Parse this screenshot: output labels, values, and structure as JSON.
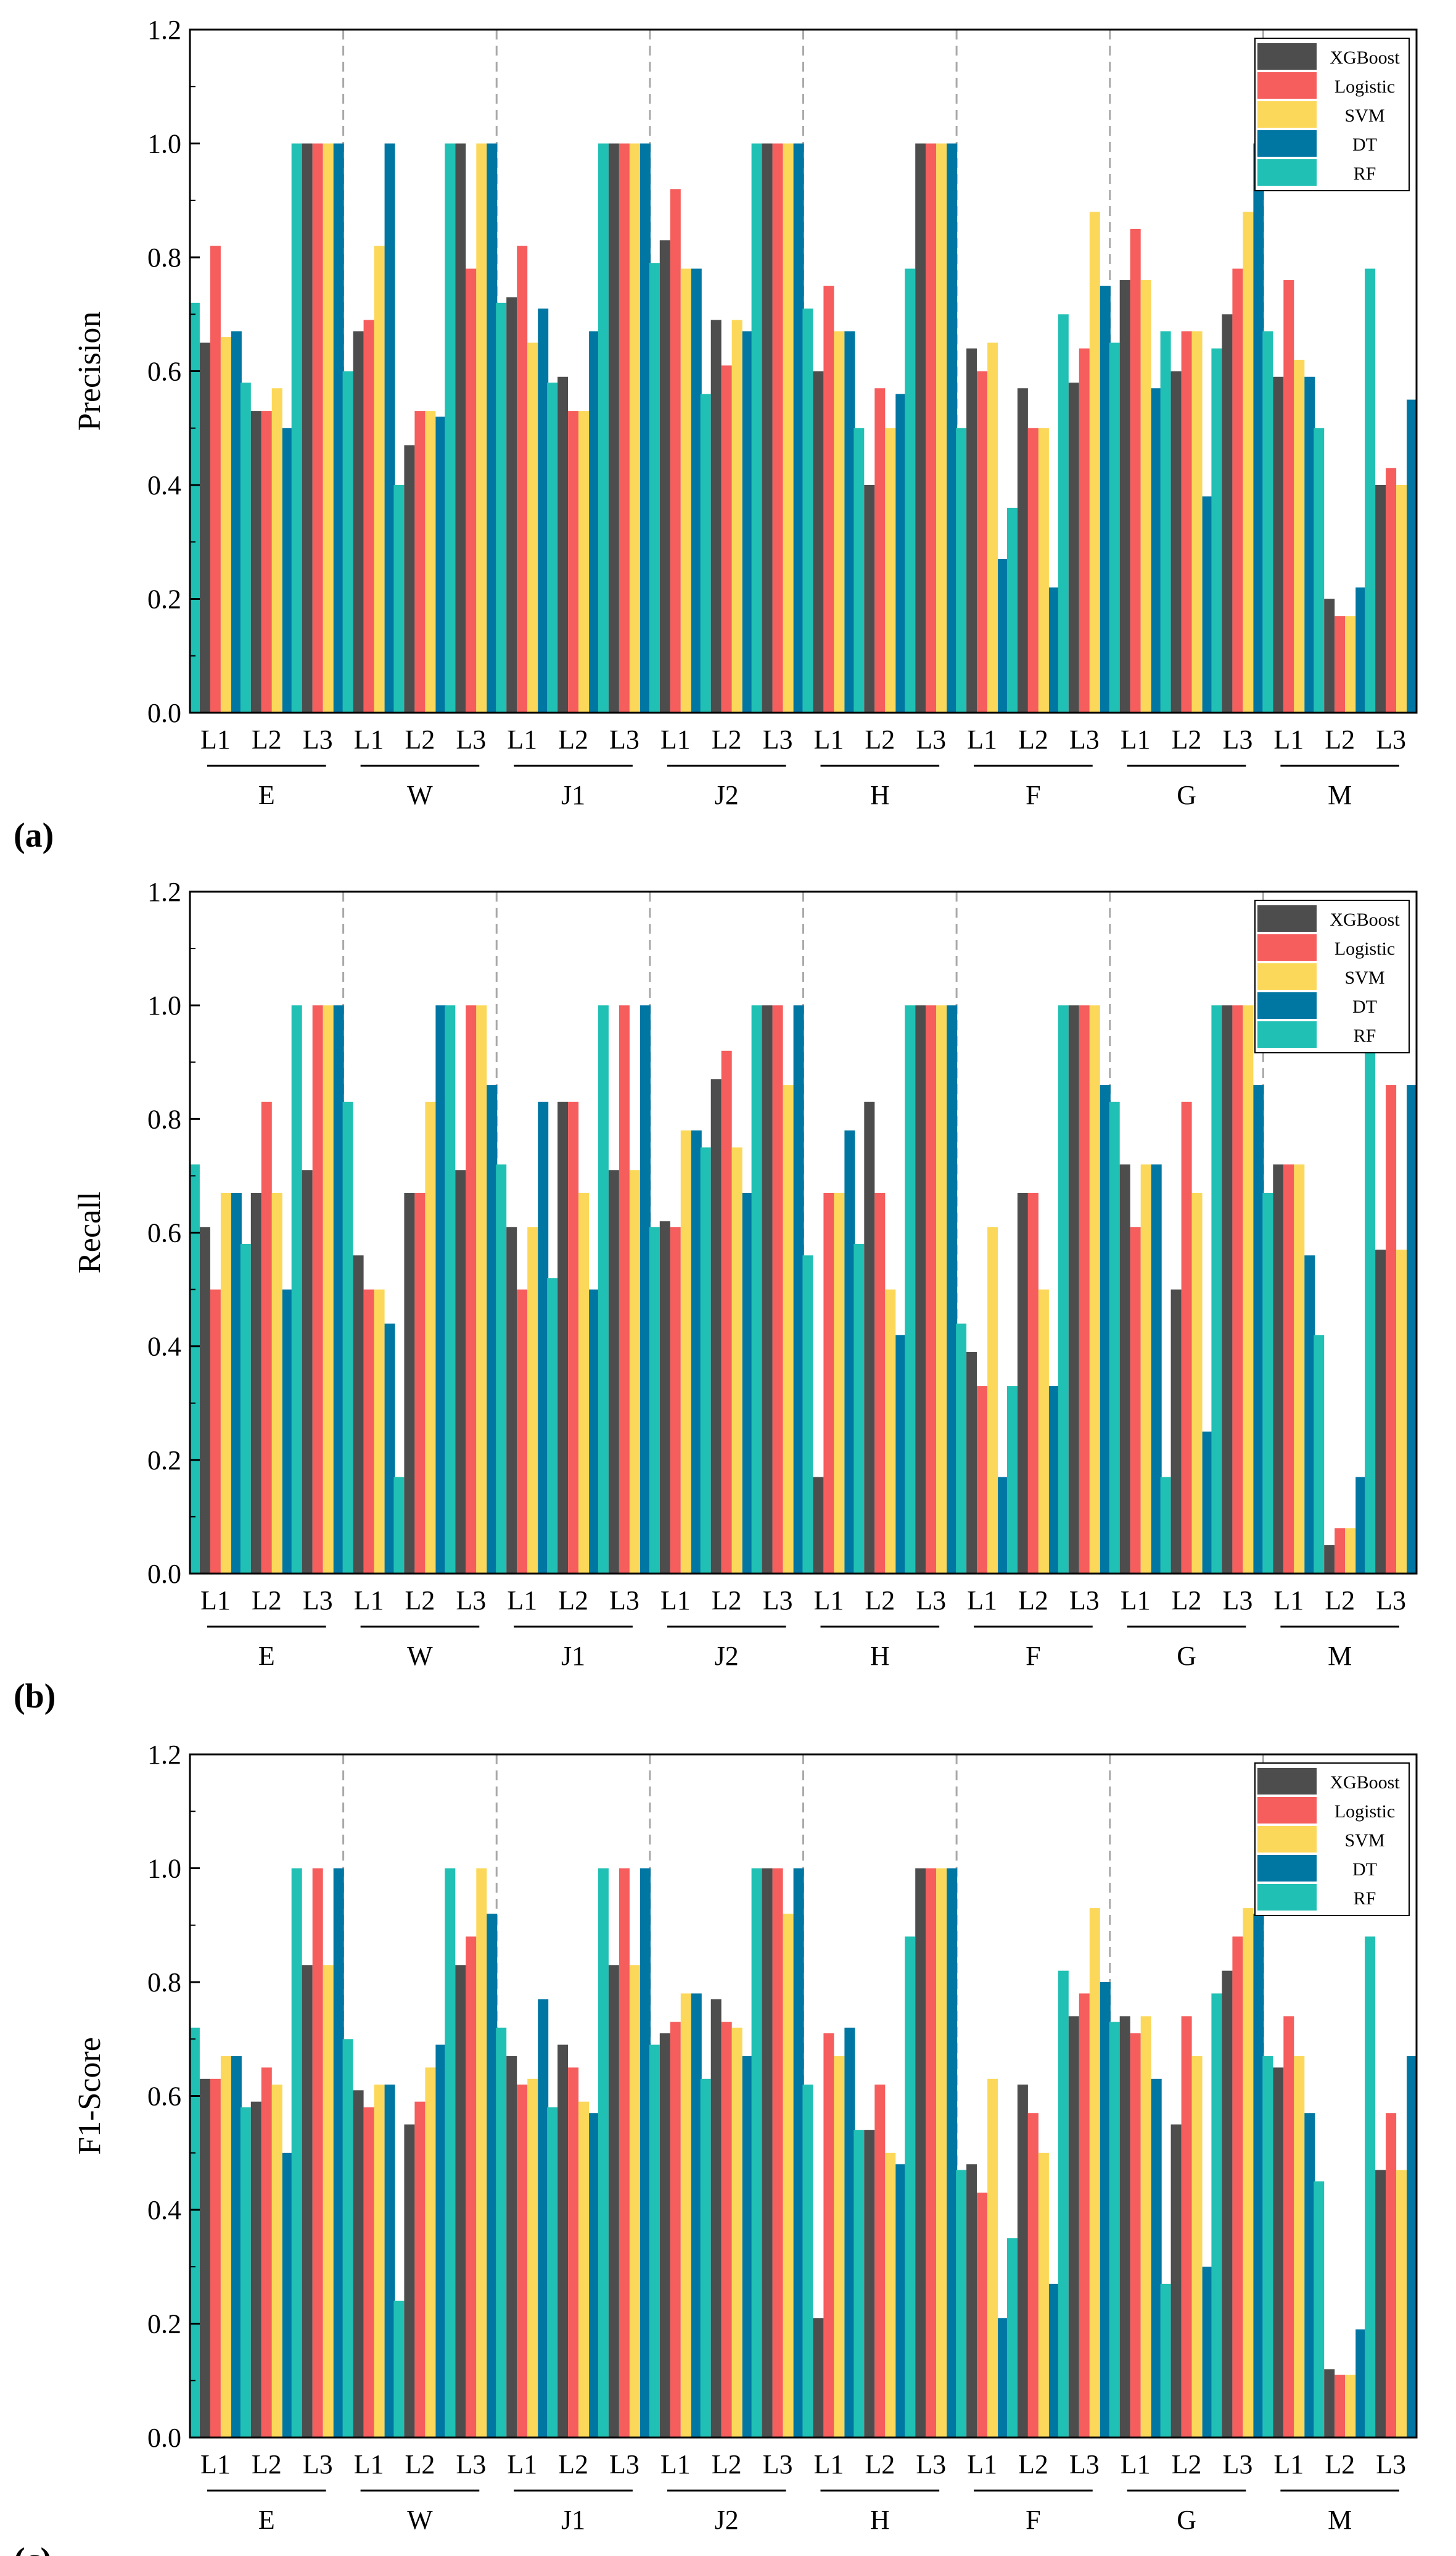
{
  "figure": {
    "panel_labels": [
      "(a)",
      "(b)",
      "(c)"
    ]
  },
  "colors": {
    "XGBoost": "#4d4d4d",
    "Logistic": "#f65d5d",
    "SVM": "#fcd85a",
    "DT": "#0076a3",
    "RF": "#21c0b4"
  },
  "chart_data": [
    {
      "type": "bar",
      "ylabel": "Precision",
      "ylim": [
        0,
        1.2
      ],
      "yticks": [
        "0.0",
        "0.2",
        "0.4",
        "0.6",
        "0.8",
        "1.0",
        "1.2"
      ],
      "groups": [
        "E",
        "W",
        "J1",
        "J2",
        "H",
        "F",
        "G",
        "M"
      ],
      "levels": [
        "L1",
        "L2",
        "L3"
      ],
      "legend": [
        "XGBoost",
        "Logistic",
        "SVM",
        "DT",
        "RF"
      ],
      "legend_position": "top-right",
      "values": {
        "E": [
          [
            0.72,
            0.65,
            0.82,
            0.66,
            0.67
          ],
          [
            0.58,
            0.53,
            0.53,
            0.57,
            0.5
          ],
          [
            1.0,
            1.0,
            1.0,
            1.0,
            1.0
          ]
        ],
        "W": [
          [
            0.6,
            0.67,
            0.69,
            0.82,
            1.0
          ],
          [
            0.4,
            0.47,
            0.53,
            0.53,
            0.52
          ],
          [
            1.0,
            1.0,
            0.78,
            1.0,
            1.0
          ]
        ],
        "J1": [
          [
            0.72,
            0.73,
            0.82,
            0.65,
            0.71
          ],
          [
            0.58,
            0.59,
            0.53,
            0.53,
            0.67
          ],
          [
            1.0,
            1.0,
            1.0,
            1.0,
            1.0
          ]
        ],
        "J2": [
          [
            0.79,
            0.83,
            0.92,
            0.78,
            0.78
          ],
          [
            0.56,
            0.69,
            0.61,
            0.69,
            0.67
          ],
          [
            1.0,
            1.0,
            1.0,
            1.0,
            1.0
          ]
        ],
        "H": [
          [
            0.71,
            0.6,
            0.75,
            0.67,
            0.67
          ],
          [
            0.5,
            0.4,
            0.57,
            0.5,
            0.56
          ],
          [
            0.78,
            1.0,
            1.0,
            1.0,
            1.0
          ]
        ],
        "F": [
          [
            0.5,
            0.64,
            0.6,
            0.65,
            0.27
          ],
          [
            0.36,
            0.57,
            0.5,
            0.5,
            0.22
          ],
          [
            0.7,
            0.58,
            0.64,
            0.88,
            0.75
          ]
        ],
        "G": [
          [
            0.65,
            0.76,
            0.85,
            0.76,
            0.57
          ],
          [
            0.67,
            0.6,
            0.67,
            0.67,
            0.38
          ],
          [
            0.64,
            0.7,
            0.78,
            0.88,
            1.0
          ]
        ],
        "M": [
          [
            0.67,
            0.59,
            0.76,
            0.62,
            0.59
          ],
          [
            0.5,
            0.2,
            0.17,
            0.17,
            0.22
          ],
          [
            0.78,
            0.4,
            0.43,
            0.4,
            0.55
          ]
        ]
      }
    },
    {
      "type": "bar",
      "ylabel": "Recall",
      "ylim": [
        0,
        1.2
      ],
      "yticks": [
        "0.0",
        "0.2",
        "0.4",
        "0.6",
        "0.8",
        "1.0",
        "1.2"
      ],
      "groups": [
        "E",
        "W",
        "J1",
        "J2",
        "H",
        "F",
        "G",
        "M"
      ],
      "levels": [
        "L1",
        "L2",
        "L3"
      ],
      "legend": [
        "XGBoost",
        "Logistic",
        "SVM",
        "DT",
        "RF"
      ],
      "legend_position": "top-right",
      "values": {
        "E": [
          [
            0.72,
            0.61,
            0.5,
            0.67,
            0.67
          ],
          [
            0.58,
            0.67,
            0.83,
            0.67,
            0.5
          ],
          [
            1.0,
            0.71,
            1.0,
            1.0,
            1.0
          ]
        ],
        "W": [
          [
            0.83,
            0.56,
            0.5,
            0.5,
            0.44
          ],
          [
            0.17,
            0.67,
            0.67,
            0.83,
            1.0
          ],
          [
            1.0,
            0.71,
            1.0,
            1.0,
            0.86
          ]
        ],
        "J1": [
          [
            0.72,
            0.61,
            0.5,
            0.61,
            0.83
          ],
          [
            0.52,
            0.83,
            0.83,
            0.67,
            0.5
          ],
          [
            1.0,
            0.71,
            1.0,
            0.71,
            1.0
          ]
        ],
        "J2": [
          [
            0.61,
            0.62,
            0.61,
            0.78,
            0.78
          ],
          [
            0.75,
            0.87,
            0.92,
            0.75,
            0.67
          ],
          [
            1.0,
            1.0,
            1.0,
            0.86,
            1.0
          ]
        ],
        "H": [
          [
            0.56,
            0.17,
            0.67,
            0.67,
            0.78
          ],
          [
            0.58,
            0.83,
            0.67,
            0.5,
            0.42
          ],
          [
            1.0,
            1.0,
            1.0,
            1.0,
            1.0
          ]
        ],
        "F": [
          [
            0.44,
            0.39,
            0.33,
            0.61,
            0.17
          ],
          [
            0.33,
            0.67,
            0.67,
            0.5,
            0.33
          ],
          [
            1.0,
            1.0,
            1.0,
            1.0,
            0.86
          ]
        ],
        "G": [
          [
            0.83,
            0.72,
            0.61,
            0.72,
            0.72
          ],
          [
            0.17,
            0.5,
            0.83,
            0.67,
            0.25
          ],
          [
            1.0,
            1.0,
            1.0,
            1.0,
            0.86
          ]
        ],
        "M": [
          [
            0.67,
            0.72,
            0.72,
            0.72,
            0.56
          ],
          [
            0.42,
            0.05,
            0.08,
            0.08,
            0.17
          ],
          [
            1.0,
            0.57,
            0.86,
            0.57,
            0.86
          ]
        ]
      }
    },
    {
      "type": "bar",
      "ylabel": "F1-Score",
      "ylim": [
        0,
        1.2
      ],
      "yticks": [
        "0.0",
        "0.2",
        "0.4",
        "0.6",
        "0.8",
        "1.0",
        "1.2"
      ],
      "groups": [
        "E",
        "W",
        "J1",
        "J2",
        "H",
        "F",
        "G",
        "M"
      ],
      "levels": [
        "L1",
        "L2",
        "L3"
      ],
      "legend": [
        "XGBoost",
        "Logistic",
        "SVM",
        "DT",
        "RF"
      ],
      "legend_position": "top-right",
      "values": {
        "E": [
          [
            0.72,
            0.63,
            0.63,
            0.67,
            0.67
          ],
          [
            0.58,
            0.59,
            0.65,
            0.62,
            0.5
          ],
          [
            1.0,
            0.83,
            1.0,
            0.83,
            1.0
          ]
        ],
        "W": [
          [
            0.7,
            0.61,
            0.58,
            0.62,
            0.62
          ],
          [
            0.24,
            0.55,
            0.59,
            0.65,
            0.69
          ],
          [
            1.0,
            0.83,
            0.88,
            1.0,
            0.92
          ]
        ],
        "J1": [
          [
            0.72,
            0.67,
            0.62,
            0.63,
            0.77
          ],
          [
            0.58,
            0.69,
            0.65,
            0.59,
            0.57
          ],
          [
            1.0,
            0.83,
            1.0,
            0.83,
            1.0
          ]
        ],
        "J2": [
          [
            0.69,
            0.71,
            0.73,
            0.78,
            0.78
          ],
          [
            0.63,
            0.77,
            0.73,
            0.72,
            0.67
          ],
          [
            1.0,
            1.0,
            1.0,
            0.92,
            1.0
          ]
        ],
        "H": [
          [
            0.62,
            0.21,
            0.71,
            0.67,
            0.72
          ],
          [
            0.54,
            0.54,
            0.62,
            0.5,
            0.48
          ],
          [
            0.88,
            1.0,
            1.0,
            1.0,
            1.0
          ]
        ],
        "F": [
          [
            0.47,
            0.48,
            0.43,
            0.63,
            0.21
          ],
          [
            0.35,
            0.62,
            0.57,
            0.5,
            0.27
          ],
          [
            0.82,
            0.74,
            0.78,
            0.93,
            0.8
          ]
        ],
        "G": [
          [
            0.73,
            0.74,
            0.71,
            0.74,
            0.63
          ],
          [
            0.27,
            0.55,
            0.74,
            0.67,
            0.3
          ],
          [
            0.78,
            0.82,
            0.88,
            0.93,
            0.92
          ]
        ],
        "M": [
          [
            0.67,
            0.65,
            0.74,
            0.67,
            0.57
          ],
          [
            0.45,
            0.12,
            0.11,
            0.11,
            0.19
          ],
          [
            0.88,
            0.47,
            0.57,
            0.47,
            0.67
          ]
        ]
      }
    }
  ]
}
